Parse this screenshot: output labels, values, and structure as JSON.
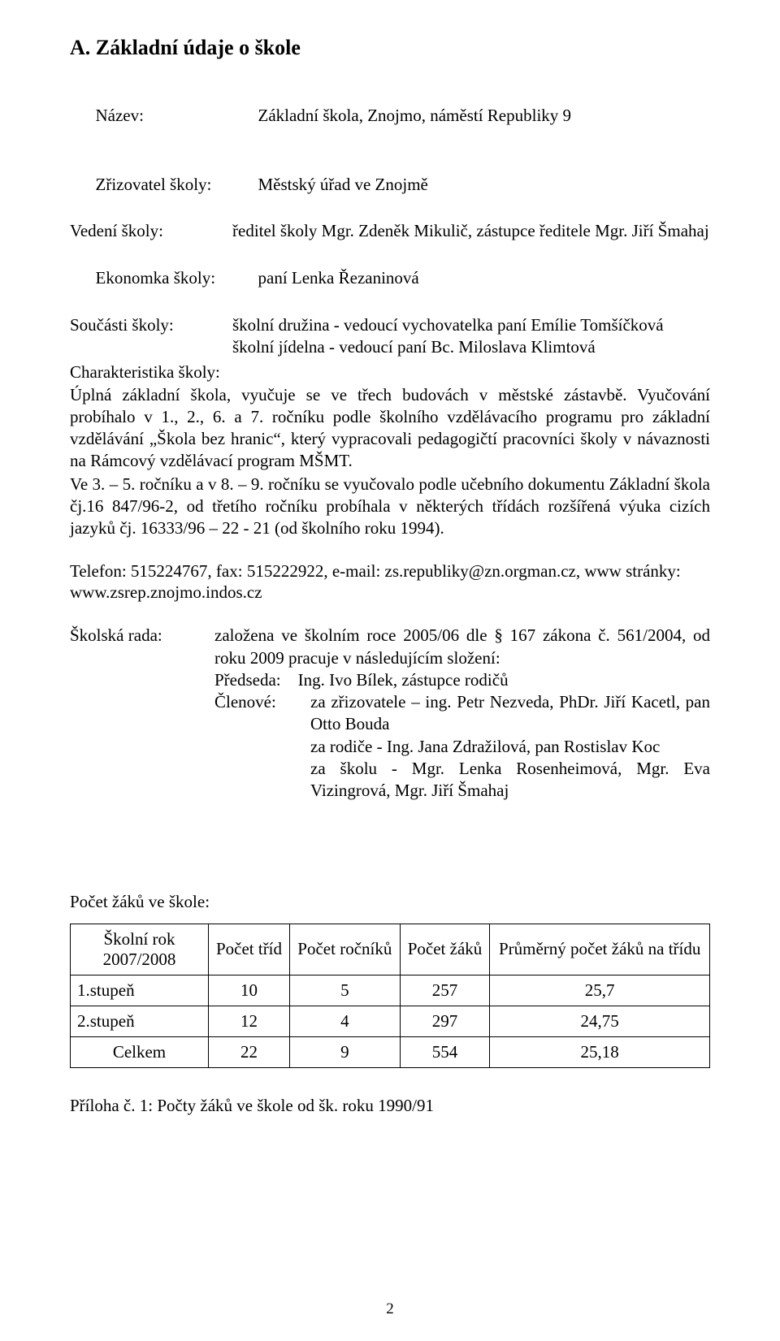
{
  "section_title": "A. Základní údaje o  škole",
  "fields": {
    "nazev": {
      "label": "Název:",
      "value": "Základní škola, Znojmo, náměstí Republiky 9"
    },
    "zrizovatel": {
      "label": "Zřizovatel školy:",
      "value": "Městský úřad ve Znojmě"
    },
    "vedeni": {
      "label": "Vedení školy:",
      "value": "ředitel školy Mgr. Zdeněk Mikulič, zástupce ředitele Mgr. Jiří Šmahaj"
    },
    "ekonomka": {
      "label": "Ekonomka školy:",
      "value": "paní Lenka Řezaninová"
    },
    "soucasti": {
      "label": "Součásti školy:",
      "line1": "školní družina  - vedoucí vychovatelka paní Emílie Tomšíčková",
      "line2": "školní jídelna   - vedoucí paní Bc. Miloslava Klimtová"
    },
    "charakteristika_label": "Charakteristika školy:",
    "charakteristika_text": "Úplná základní škola, vyučuje se ve třech budovách v městské zástavbě. Vyučování probíhalo v 1., 2., 6. a 7. ročníku podle školního vzdělávacího programu pro základní vzdělávání „Škola bez hranic“, který vypracovali pedagogičtí pracovníci školy v návaznosti na Rámcový vzdělávací program MŠMT.",
    "charakteristika_text2": "Ve 3. – 5. ročníku a v 8. – 9. ročníku se vyučovalo podle učebního dokumentu Základní škola čj.16 847/96-2, od třetího ročníku probíhala v některých třídách rozšířená výuka cizích jazyků čj. 16333/96 – 22 - 21 (od školního roku  1994).",
    "contact": "Telefon: 515224767, fax: 515222922, e-mail: zs.republiky@zn.orgman.cz, www stránky: www.zsrep.znojmo.indos.cz",
    "skolska": {
      "label": "Školská rada:",
      "line1": "založena ve školním roce 2005/06 dle § 167 zákona č. 561/2004, od roku 2009 pracuje v následujícím složení:",
      "predseda_label": "Předseda:",
      "predseda": "Ing. Ivo Bílek, zástupce rodičů",
      "clenove_label": "Členové:",
      "clenove1": "za zřizovatele – ing. Petr Nezveda, PhDr. Jiří Kacetl, pan Otto Bouda",
      "clenove2": "za rodiče - Ing. Jana Zdražilová,  pan Rostislav Koc",
      "clenove3": "za školu - Mgr. Lenka Rosenheimová, Mgr. Eva Vizingrová, Mgr. Jiří Šmahaj"
    }
  },
  "counts": {
    "title": "Počet  žáků ve škole:",
    "headers": [
      "Školní rok 2007/2008",
      "Počet tříd",
      "Počet ročníků",
      "Počet žáků",
      "Průměrný počet žáků na třídu"
    ],
    "rows": [
      {
        "label": "1.stupeň",
        "trid": "10",
        "rocniku": "5",
        "zaku": "257",
        "prumer": "25,7"
      },
      {
        "label": "2.stupeň",
        "trid": "12",
        "rocniku": "4",
        "zaku": "297",
        "prumer": "24,75"
      },
      {
        "label": "Celkem",
        "trid": "22",
        "rocniku": "9",
        "zaku": "554",
        "prumer": "25,18"
      }
    ]
  },
  "appendix": "Příloha č. 1: Počty žáků ve škole od šk. roku 1990/91",
  "page_number": "2"
}
